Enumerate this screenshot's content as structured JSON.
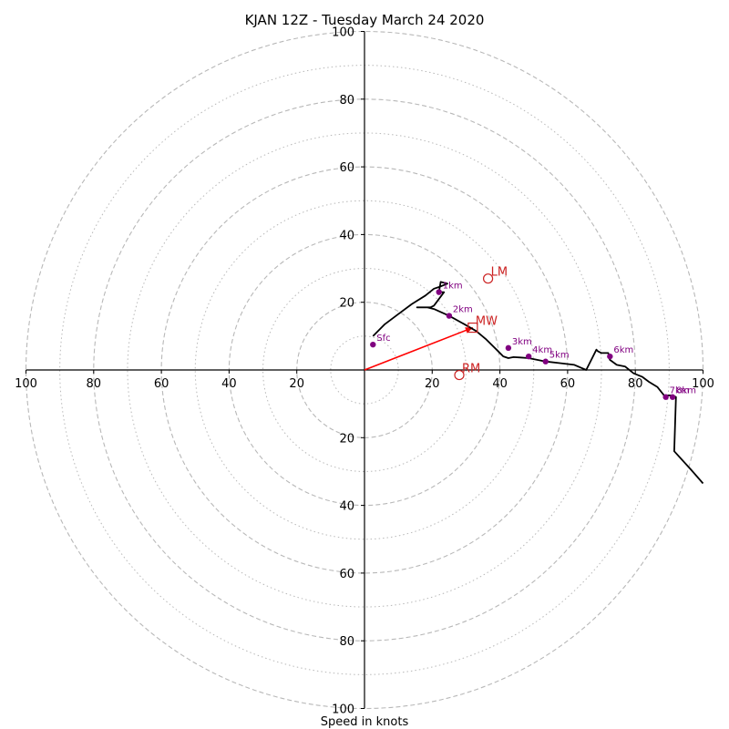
{
  "chart_data": {
    "type": "hodograph",
    "title": "KJAN 12Z - Tuesday March 24 2020",
    "xlabel": "Speed in knots",
    "range": [
      -100,
      100
    ],
    "rings_major": [
      20,
      40,
      60,
      80,
      100
    ],
    "rings_minor": [
      10,
      30,
      50,
      70,
      90
    ],
    "tick_values": [
      20,
      40,
      60,
      80,
      100
    ],
    "tick_labels": [
      "20",
      "40",
      "60",
      "80",
      "100"
    ],
    "trace": [
      [
        2.5,
        10
      ],
      [
        6,
        13.5
      ],
      [
        10,
        16.5
      ],
      [
        14,
        19.5
      ],
      [
        18,
        22
      ],
      [
        20.5,
        24
      ],
      [
        22,
        24.5
      ],
      [
        24.5,
        25.5
      ],
      [
        22.5,
        26
      ],
      [
        22,
        23
      ],
      [
        23.5,
        23
      ],
      [
        20.5,
        19
      ],
      [
        19.5,
        18.5
      ],
      [
        15.5,
        18.5
      ],
      [
        18.5,
        18.5
      ],
      [
        20.5,
        18
      ],
      [
        25,
        16
      ],
      [
        29.5,
        13.5
      ],
      [
        33,
        11.5
      ],
      [
        36,
        9
      ],
      [
        39,
        6
      ],
      [
        41,
        4
      ],
      [
        42.5,
        3.5
      ],
      [
        44,
        3.8
      ],
      [
        46,
        3.7
      ],
      [
        48.5,
        3.5
      ],
      [
        53.5,
        2.5
      ],
      [
        58,
        2
      ],
      [
        62,
        1.5
      ],
      [
        65.5,
        0
      ],
      [
        67,
        3
      ],
      [
        68.5,
        6
      ],
      [
        69,
        5.5
      ],
      [
        70,
        5
      ],
      [
        72,
        5
      ],
      [
        72.5,
        3
      ],
      [
        74.5,
        1.5
      ],
      [
        77,
        1
      ],
      [
        79.5,
        -1
      ],
      [
        82,
        -2
      ],
      [
        84,
        -3.5
      ],
      [
        86.5,
        -5
      ],
      [
        88.5,
        -7.5
      ],
      [
        91,
        -7.5
      ],
      [
        92,
        -8
      ],
      [
        91.5,
        -24
      ],
      [
        96.5,
        -29.5
      ],
      [
        100,
        -33.5
      ]
    ],
    "height_markers": [
      {
        "label": "Sfc",
        "u": 2.5,
        "v": 7.5
      },
      {
        "label": "1km",
        "u": 22,
        "v": 23
      },
      {
        "label": "2km",
        "u": 25,
        "v": 16
      },
      {
        "label": "3km",
        "u": 42.5,
        "v": 6.5
      },
      {
        "label": "4km",
        "u": 48.5,
        "v": 4
      },
      {
        "label": "5km",
        "u": 53.5,
        "v": 2.5
      },
      {
        "label": "6km",
        "u": 72.5,
        "v": 4
      },
      {
        "label": "7km",
        "u": 89,
        "v": -8
      },
      {
        "label": "8km",
        "u": 91,
        "v": -8
      }
    ],
    "storm_motions": [
      {
        "label": "LM",
        "u": 36.5,
        "v": 27,
        "shape": "circle"
      },
      {
        "label": "MW",
        "u": 32,
        "v": 12.5,
        "shape": "square"
      },
      {
        "label": "RM",
        "u": 28,
        "v": -1.5,
        "shape": "circle"
      }
    ],
    "bunkers_vector": {
      "from": [
        0,
        0
      ],
      "to": [
        32,
        12.5
      ]
    },
    "colors": {
      "trace": "#000000",
      "markers": "#800080",
      "storm_motion": "#cc2222",
      "vector": "#ff0000",
      "rings": "#b8b8b8",
      "axes": "#000000"
    }
  }
}
